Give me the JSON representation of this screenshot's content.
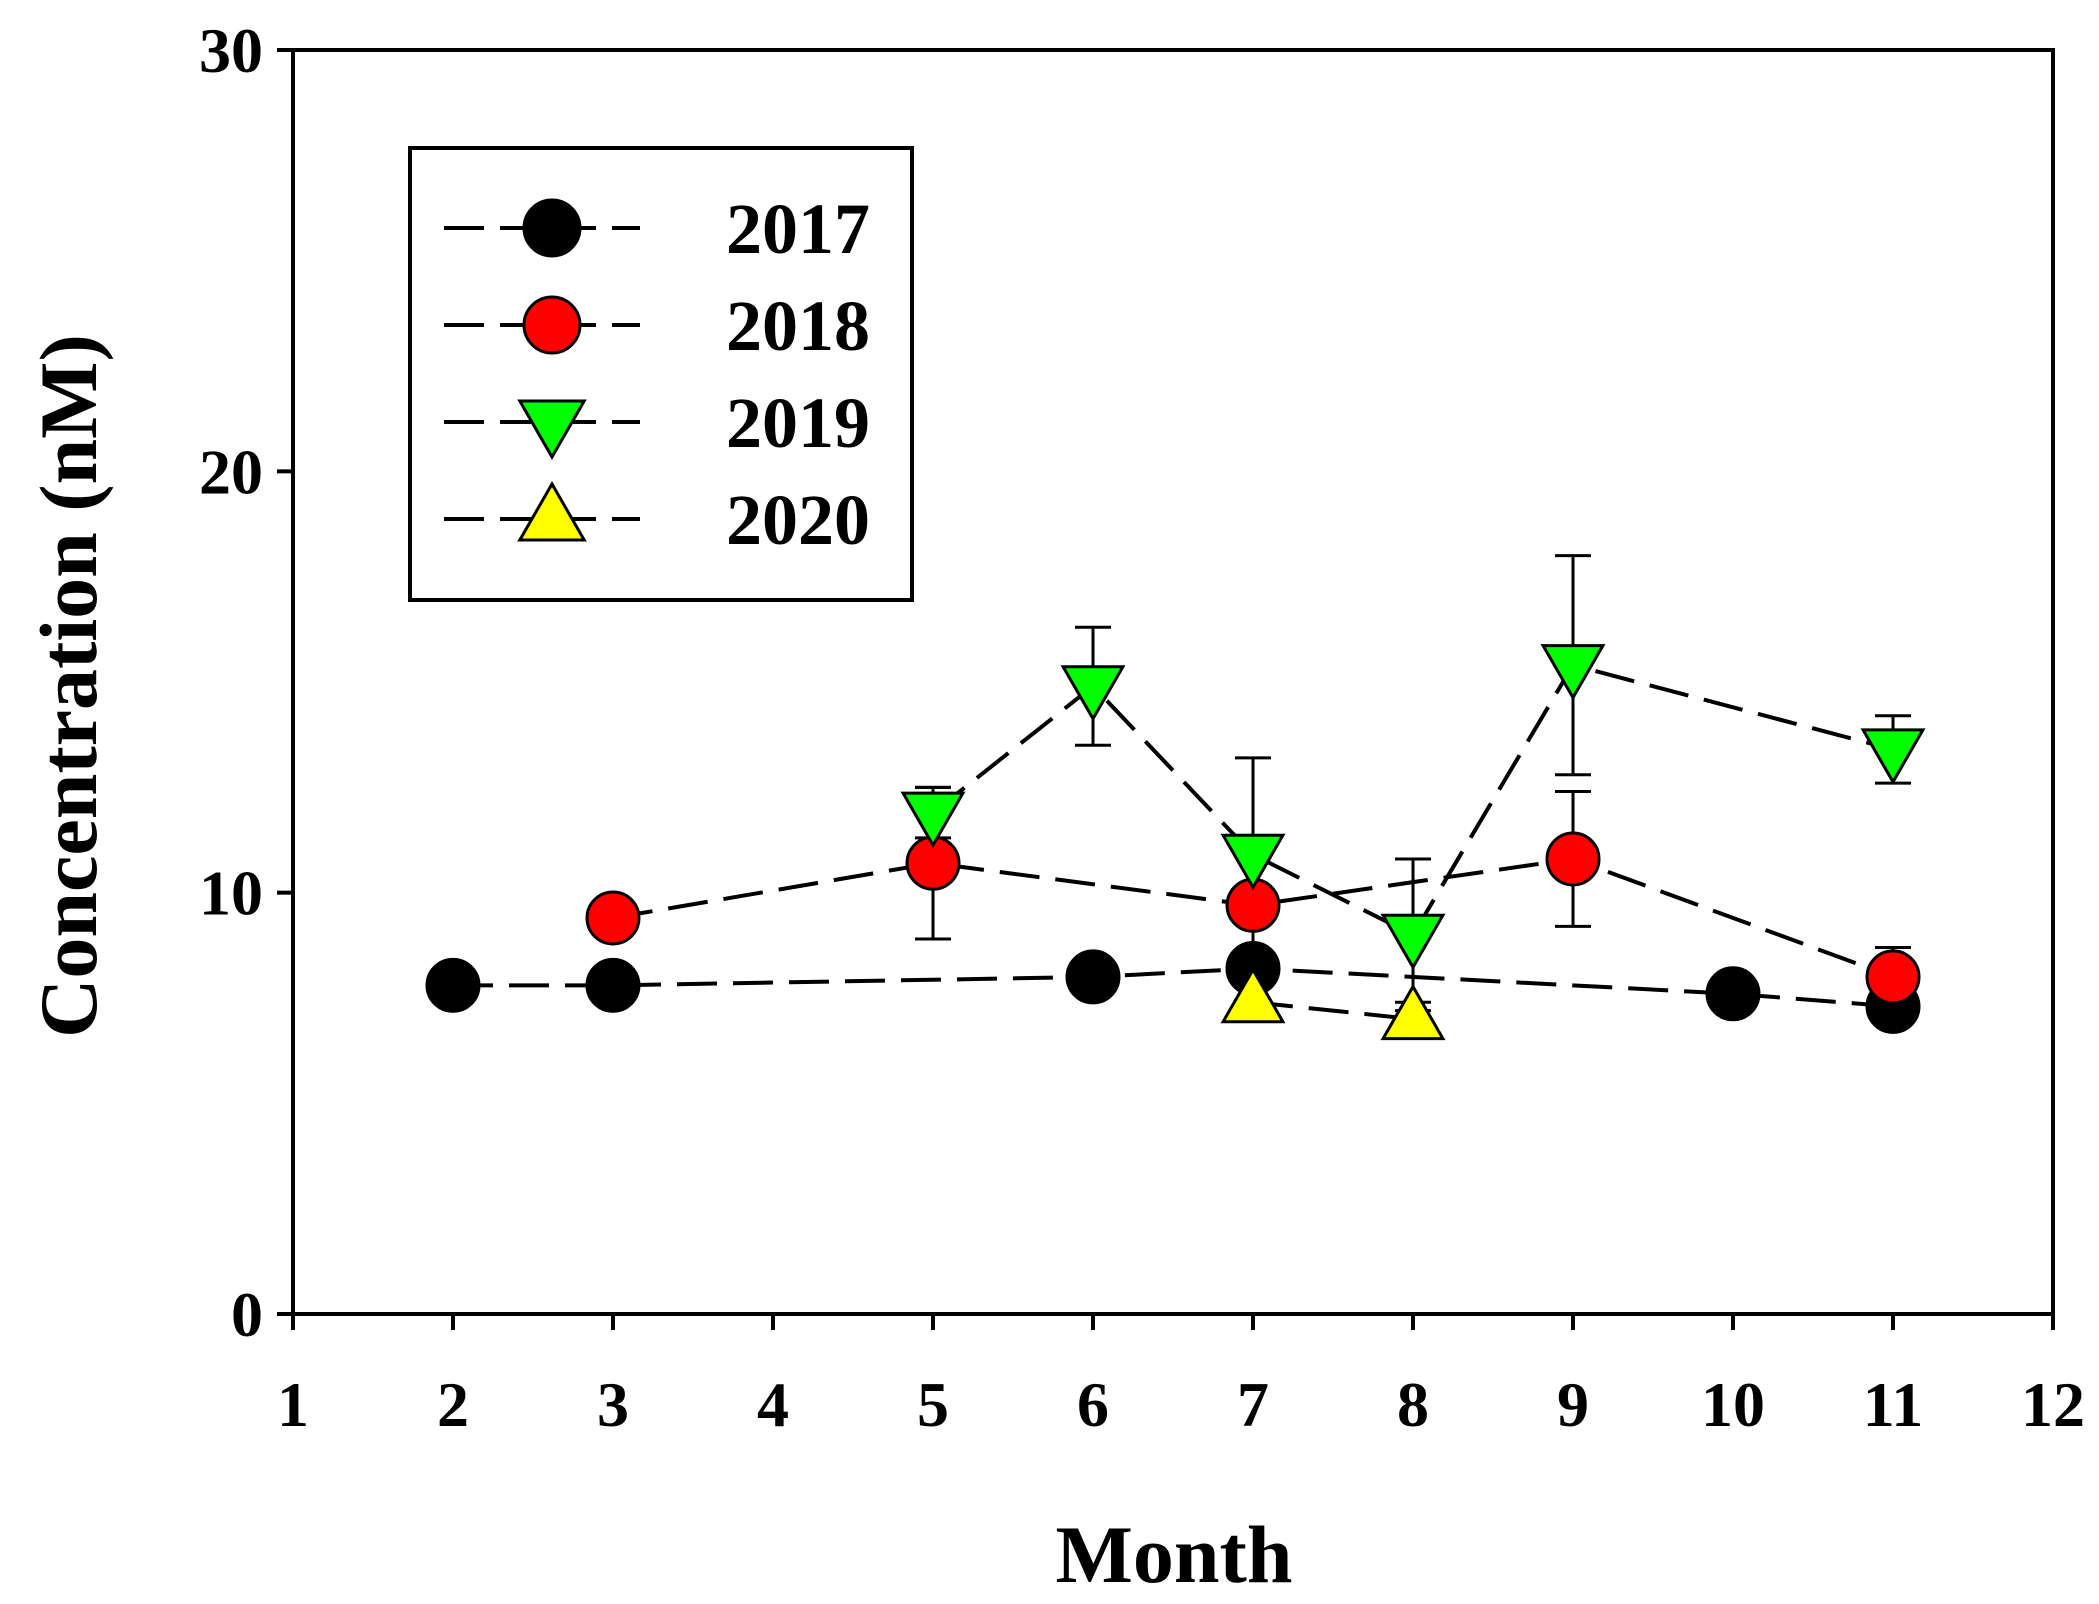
{
  "chart_data": {
    "type": "line",
    "title": "",
    "xlabel": "Month",
    "ylabel": "Concentration (nM)",
    "xlim": [
      1,
      12
    ],
    "ylim": [
      0,
      30
    ],
    "xticks": [
      1,
      2,
      3,
      4,
      5,
      6,
      7,
      8,
      9,
      10,
      11,
      12
    ],
    "yticks": [
      0,
      10,
      20,
      30
    ],
    "grid": false,
    "legend_position": "top-left",
    "series": [
      {
        "name": "2017",
        "marker": "circle",
        "color": "#000000",
        "x": [
          2,
          3,
          6,
          7,
          10,
          11
        ],
        "y": [
          7.8,
          7.8,
          8.0,
          8.2,
          7.6,
          7.3
        ],
        "err": [
          0,
          0,
          0,
          0,
          0,
          0
        ]
      },
      {
        "name": "2018",
        "marker": "circle",
        "color": "#ff0000",
        "x": [
          3,
          5,
          7,
          9,
          11
        ],
        "y": [
          9.4,
          10.7,
          9.7,
          10.8,
          8.0
        ],
        "err": [
          0,
          1.8,
          0,
          1.6,
          0.7
        ]
      },
      {
        "name": "2019",
        "marker": "triangle-down",
        "color": "#00ff00",
        "x": [
          5,
          6,
          7,
          8,
          9,
          11
        ],
        "y": [
          11.9,
          14.9,
          10.9,
          9.0,
          15.4,
          13.4
        ],
        "err": [
          0.6,
          1.4,
          2.3,
          1.8,
          2.6,
          0.8
        ]
      },
      {
        "name": "2020",
        "marker": "triangle-up",
        "color": "#ffff00",
        "x": [
          7,
          8
        ],
        "y": [
          7.4,
          7.0
        ],
        "err": [
          0,
          0.4
        ]
      }
    ]
  }
}
